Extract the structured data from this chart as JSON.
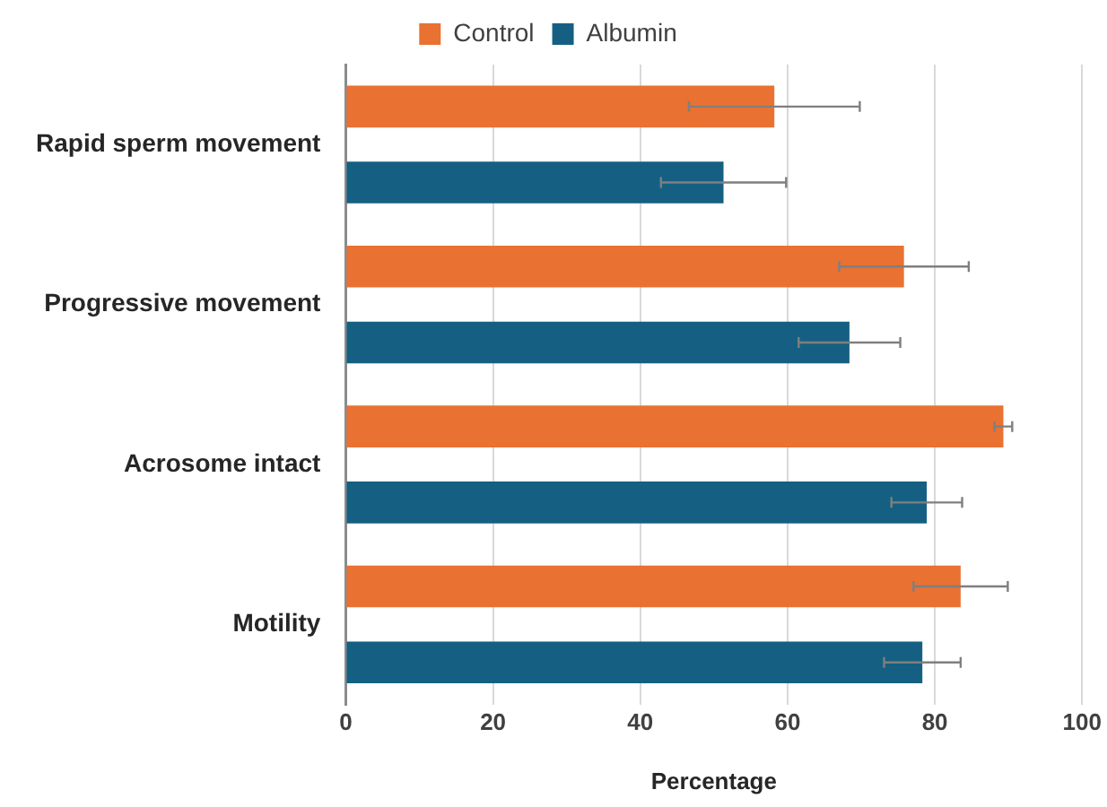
{
  "chart_data": {
    "type": "bar",
    "orientation": "horizontal",
    "xlabel": "Percentage",
    "categories": [
      "Rapid sperm movement",
      "Progressive movement",
      "Acrosome intact",
      "Motility"
    ],
    "series": [
      {
        "name": "Control",
        "color": "#e97132",
        "values": [
          58.2,
          75.8,
          89.3,
          83.5
        ],
        "errors": [
          11.6,
          8.8,
          1.2,
          6.4
        ]
      },
      {
        "name": "Albumin",
        "color": "#156082",
        "values": [
          51.3,
          68.4,
          78.9,
          78.3
        ],
        "errors": [
          8.5,
          6.9,
          4.8,
          5.2
        ]
      }
    ],
    "xlim": [
      0,
      100
    ],
    "xticks": [
      0,
      20,
      40,
      60,
      80,
      100
    ],
    "grid": "x",
    "legend": "top"
  }
}
